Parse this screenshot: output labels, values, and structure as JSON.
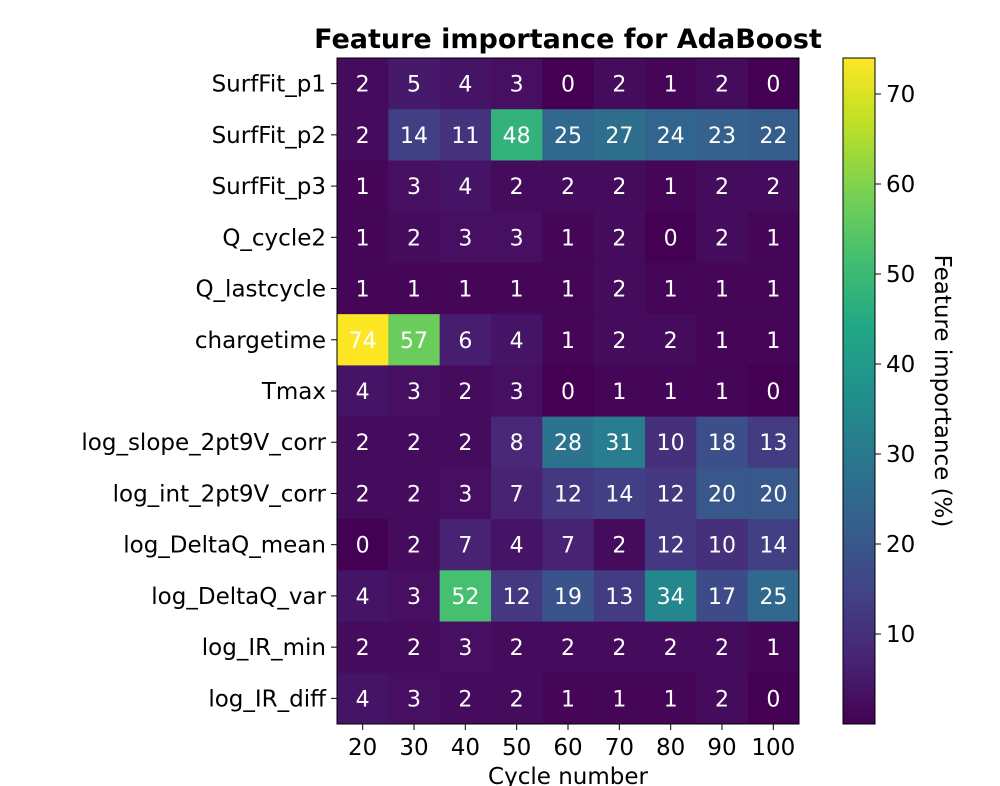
{
  "chart_data": {
    "type": "heatmap",
    "title": "Feature importance for AdaBoost",
    "xlabel": "Cycle number",
    "ylabel": "",
    "x_categories": [
      "20",
      "30",
      "40",
      "50",
      "60",
      "70",
      "80",
      "90",
      "100"
    ],
    "y_categories": [
      "SurfFit_p1",
      "SurfFit_p2",
      "SurfFit_p3",
      "Q_cycle2",
      "Q_lastcycle",
      "chargetime",
      "Tmax",
      "log_slope_2pt9V_corr",
      "log_int_2pt9V_corr",
      "log_DeltaQ_mean",
      "log_DeltaQ_var",
      "log_IR_min",
      "log_IR_diff"
    ],
    "values": [
      [
        2,
        5,
        4,
        3,
        0,
        2,
        1,
        2,
        0
      ],
      [
        2,
        14,
        11,
        48,
        25,
        27,
        24,
        23,
        22
      ],
      [
        1,
        3,
        4,
        2,
        2,
        2,
        1,
        2,
        2
      ],
      [
        1,
        2,
        3,
        3,
        1,
        2,
        0,
        2,
        1
      ],
      [
        1,
        1,
        1,
        1,
        1,
        2,
        1,
        1,
        1
      ],
      [
        74,
        57,
        6,
        4,
        1,
        2,
        2,
        1,
        1
      ],
      [
        4,
        3,
        2,
        3,
        0,
        1,
        1,
        1,
        0
      ],
      [
        2,
        2,
        2,
        8,
        28,
        31,
        10,
        18,
        13
      ],
      [
        2,
        2,
        3,
        7,
        12,
        14,
        12,
        20,
        20
      ],
      [
        0,
        2,
        7,
        4,
        7,
        2,
        12,
        10,
        14
      ],
      [
        4,
        3,
        52,
        12,
        19,
        13,
        34,
        17,
        25
      ],
      [
        2,
        2,
        3,
        2,
        2,
        2,
        2,
        2,
        1
      ],
      [
        4,
        3,
        2,
        2,
        1,
        1,
        1,
        2,
        0
      ]
    ],
    "colormap": "viridis",
    "value_range": [
      0,
      74
    ],
    "colorbar": {
      "label": "Feature importance (%)",
      "ticks": [
        10,
        20,
        30,
        40,
        50,
        60,
        70
      ]
    }
  }
}
